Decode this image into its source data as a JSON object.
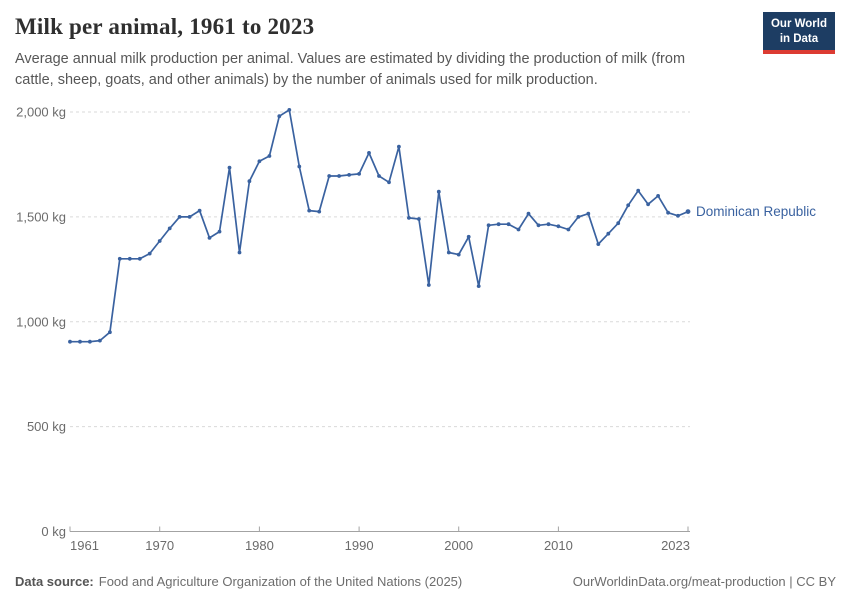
{
  "header": {
    "title": "Milk per animal, 1961 to 2023",
    "subtitle_lines": [
      "Average annual milk production per animal. Values are estimated by dividing the production of milk (from",
      "cattle, sheep, goats, and other animals) by the number of animals used for milk production."
    ],
    "logo_line1": "Our World",
    "logo_line2": "in Data",
    "logo_colors": {
      "background": "#1d3d63",
      "stripe": "#dc3b32",
      "text": "#ffffff"
    }
  },
  "chart_data": {
    "type": "line",
    "title": "Milk per animal, 1961 to 2023",
    "xlabel": "",
    "ylabel": "",
    "unit": "kg",
    "xlim": [
      1961,
      2023
    ],
    "ylim": [
      0,
      2000
    ],
    "grid": true,
    "legend_position": "end-of-line-label",
    "x_ticks": [
      {
        "value": 1961,
        "label": "1961"
      },
      {
        "value": 1970,
        "label": "1970"
      },
      {
        "value": 1980,
        "label": "1980"
      },
      {
        "value": 1990,
        "label": "1990"
      },
      {
        "value": 2000,
        "label": "2000"
      },
      {
        "value": 2010,
        "label": "2010"
      },
      {
        "value": 2023,
        "label": "2023"
      }
    ],
    "y_ticks": [
      {
        "value": 0,
        "label": "0 kg"
      },
      {
        "value": 500,
        "label": "500 kg"
      },
      {
        "value": 1000,
        "label": "1,000 kg"
      },
      {
        "value": 1500,
        "label": "1,500 kg"
      },
      {
        "value": 2000,
        "label": "2,000 kg"
      }
    ],
    "series": [
      {
        "name": "Dominican Republic",
        "color": "#3a62a0",
        "years": [
          1961,
          1962,
          1963,
          1964,
          1965,
          1966,
          1967,
          1968,
          1969,
          1970,
          1971,
          1972,
          1973,
          1974,
          1975,
          1976,
          1977,
          1978,
          1979,
          1980,
          1981,
          1982,
          1983,
          1984,
          1985,
          1986,
          1987,
          1988,
          1989,
          1990,
          1991,
          1992,
          1993,
          1994,
          1995,
          1996,
          1997,
          1998,
          1999,
          2000,
          2001,
          2002,
          2003,
          2004,
          2005,
          2006,
          2007,
          2008,
          2009,
          2010,
          2011,
          2012,
          2013,
          2014,
          2015,
          2016,
          2017,
          2018,
          2019,
          2020,
          2021,
          2022,
          2023
        ],
        "values": [
          905,
          905,
          905,
          910,
          950,
          1300,
          1300,
          1300,
          1325,
          1385,
          1445,
          1500,
          1500,
          1530,
          1400,
          1430,
          1735,
          1330,
          1670,
          1765,
          1790,
          1980,
          2010,
          1740,
          1530,
          1525,
          1695,
          1695,
          1700,
          1705,
          1805,
          1695,
          1665,
          1835,
          1495,
          1490,
          1175,
          1620,
          1330,
          1320,
          1405,
          1170,
          1460,
          1465,
          1465,
          1440,
          1515,
          1460,
          1465,
          1455,
          1440,
          1500,
          1515,
          1370,
          1420,
          1470,
          1555,
          1625,
          1560,
          1600,
          1520,
          1505,
          1525
        ]
      }
    ],
    "colors": {
      "grid": "#dadada",
      "axis": "#a3a3a3",
      "tick_text": "#6b6b6b",
      "line": "#3a62a0",
      "series_label": "#3a62a0"
    }
  },
  "footer": {
    "data_source_label": "Data source:",
    "data_source_text": "Food and Agriculture Organization of the United Nations (2025)",
    "attribution_link": "OurWorldinData.org/meat-production",
    "attribution_suffix": " | CC BY"
  }
}
